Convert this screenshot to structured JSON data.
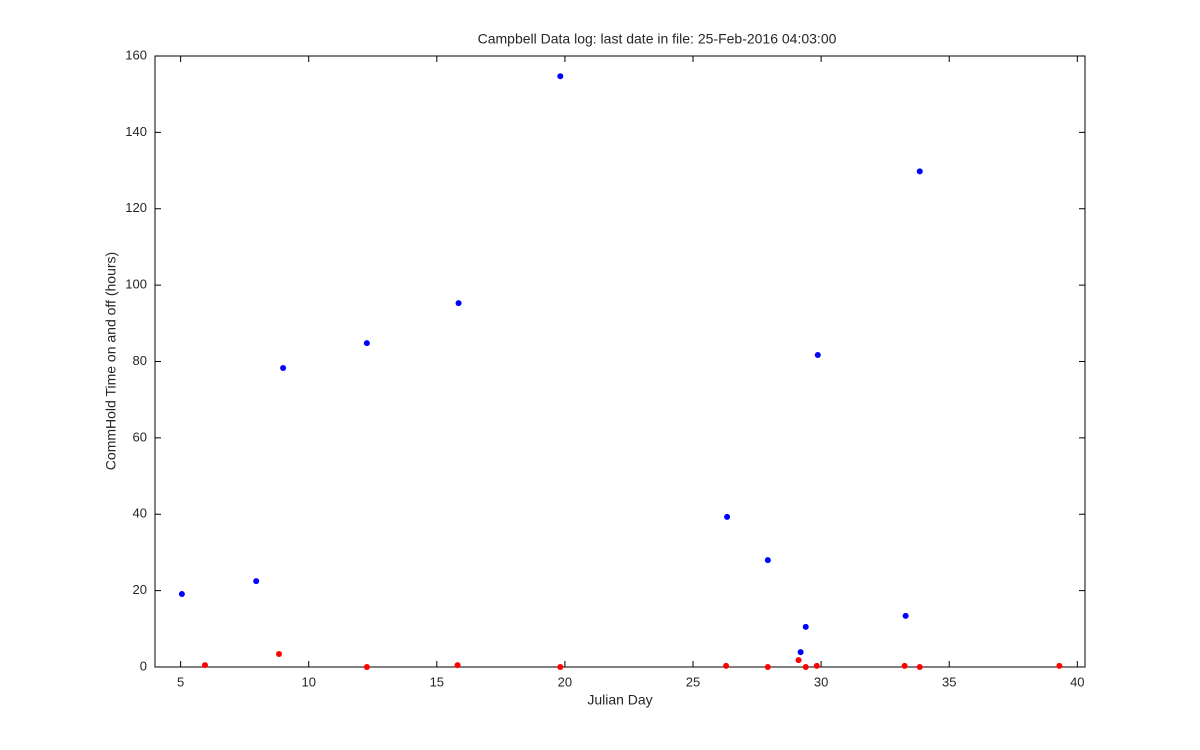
{
  "chart_data": {
    "type": "scatter",
    "title": "Campbell Data log: last date in file: 25-Feb-2016 04:03:00",
    "x_label": "Julian Day",
    "y_label": "CommHold Time on and off (hours)",
    "series": [
      {
        "color": "#0000ff",
        "x": [
          5.05,
          7.95,
          9.0,
          12.27,
          15.85,
          19.82,
          26.33,
          27.92,
          29.2,
          29.4,
          29.87,
          33.3,
          33.85
        ],
        "values": [
          19.1,
          22.5,
          78.3,
          84.8,
          95.3,
          154.7,
          39.3,
          28.0,
          3.9,
          10.5,
          81.7,
          13.4,
          129.8
        ]
      },
      {
        "color": "#ff0000",
        "x": [
          5.95,
          8.84,
          12.27,
          15.81,
          19.82,
          26.29,
          27.92,
          29.12,
          29.4,
          29.83,
          33.26,
          33.85,
          39.3
        ],
        "values": [
          0.5,
          3.4,
          0,
          0.5,
          0,
          0.3,
          0,
          1.8,
          0,
          0.3,
          0.3,
          0,
          0.3
        ]
      }
    ],
    "xlim": [
      4,
      40.3
    ],
    "xticks": [
      5,
      10,
      15,
      20,
      25,
      30,
      35,
      40
    ],
    "ylim": [
      0,
      160
    ],
    "yticks": [
      0,
      20,
      40,
      60,
      80,
      100,
      120,
      140,
      160
    ]
  }
}
